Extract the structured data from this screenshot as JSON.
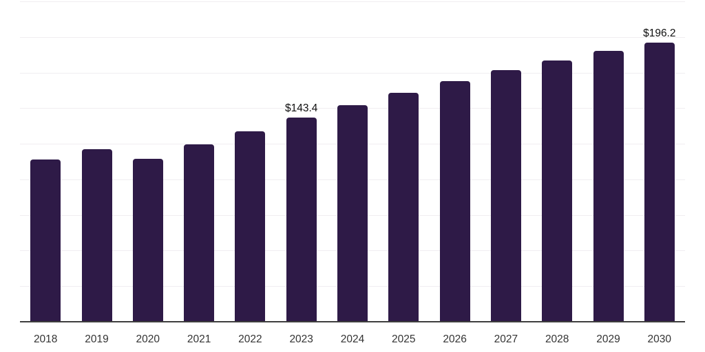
{
  "chart_data": {
    "type": "bar",
    "title": "",
    "categories": [
      "2018",
      "2019",
      "2020",
      "2021",
      "2022",
      "2023",
      "2024",
      "2025",
      "2026",
      "2027",
      "2028",
      "2029",
      "2030"
    ],
    "values": [
      114.0,
      121.1,
      114.3,
      124.4,
      133.8,
      143.4,
      151.9,
      160.9,
      169.2,
      176.5,
      183.5,
      190.3,
      196.2
    ],
    "bar_labels": [
      "",
      "",
      "",
      "",
      "",
      "$143.4",
      "",
      "",
      "",
      "",
      "",
      "",
      "$196.2"
    ],
    "xlabel": "",
    "ylabel": "",
    "ylim": [
      0,
      225
    ],
    "grid_step": 25,
    "grid": true,
    "legend": false,
    "colors": {
      "bar": "#2E1A47",
      "grid_line": "#F0EDF1",
      "axis_line": "#3D3D3D",
      "tick_label": "#333333",
      "bar_label": "#0F0F0F"
    }
  }
}
